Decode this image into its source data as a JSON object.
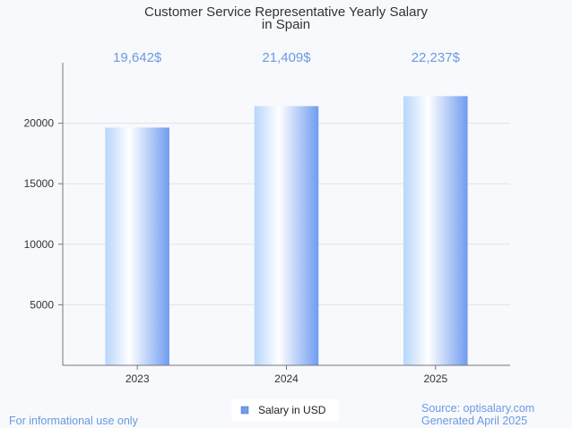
{
  "chart_data": {
    "type": "bar",
    "title_lines": [
      "Customer Service Representative Yearly Salary",
      "in Spain"
    ],
    "categories": [
      "2023",
      "2024",
      "2025"
    ],
    "series": [
      {
        "name": "Salary in USD",
        "values": [
          19642,
          21409,
          22237
        ]
      }
    ],
    "value_labels": [
      "19,642$",
      "21,409$",
      "22,237$"
    ],
    "yticks": [
      5000,
      10000,
      15000,
      20000
    ],
    "ylim": [
      0,
      25000
    ],
    "xlabel": "",
    "ylabel": "",
    "grid": true,
    "legend_position": "bottom-center",
    "bar_colors": {
      "edge": "#6f9cf0",
      "light": "#ffffff",
      "mid": "#b7d6fb"
    }
  },
  "footer": {
    "disclaimer": "For informational use only",
    "source": "Source: optisalary.com",
    "generated": "Generated April 2025"
  }
}
